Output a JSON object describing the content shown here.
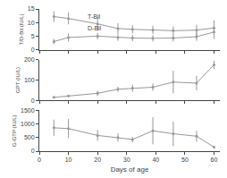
{
  "chart_data": [
    {
      "type": "line",
      "ylabel": "T/D-Bil (IU/L)",
      "x": [
        5,
        10,
        20,
        27,
        32,
        39,
        46,
        54,
        60
      ],
      "series": [
        {
          "color": "#999999",
          "marker": "circle",
          "line_style": "solid",
          "values": [
            12.2,
            11.5,
            9.5,
            7.8,
            7.5,
            7.3,
            7.0,
            7.2,
            8.0
          ],
          "errors": [
            2.0,
            2.2,
            2.5,
            2.0,
            1.5,
            1.5,
            1.5,
            2.0,
            2.8
          ]
        },
        {
          "color": "#999999",
          "marker": "circle",
          "line_style": "solid",
          "values": [
            3.0,
            4.5,
            5.0,
            4.5,
            4.3,
            4.2,
            4.3,
            4.8,
            6.5
          ],
          "errors": [
            1.0,
            1.5,
            1.2,
            1.2,
            1.2,
            1.2,
            1.3,
            1.5,
            2.5
          ]
        }
      ],
      "annotations": [
        {
          "text": "T-Bil",
          "x": 16,
          "y": 10.5
        },
        {
          "text": "D-Bil",
          "x": 16,
          "y": 6.0
        }
      ],
      "xlim": [
        0,
        62
      ],
      "xticks": [
        0,
        10,
        20,
        30,
        40,
        50,
        60
      ],
      "ylim": [
        0,
        15
      ],
      "yticks": [
        0,
        5,
        10,
        15
      ],
      "grid": false,
      "tick_labels": "y"
    },
    {
      "type": "line",
      "ylabel": "GPT (IU/L)",
      "x": [
        5,
        10,
        20,
        27,
        32,
        39,
        46,
        54,
        60
      ],
      "series": [
        {
          "color": "#999999",
          "marker": "circle",
          "line_style": "solid",
          "values": [
            15,
            22,
            35,
            55,
            60,
            65,
            90,
            85,
            175
          ],
          "errors": [
            5,
            5,
            12,
            12,
            18,
            18,
            55,
            35,
            20
          ]
        }
      ],
      "xlim": [
        0,
        62
      ],
      "xticks": [
        0,
        10,
        20,
        30,
        40,
        50,
        60
      ],
      "ylim": [
        0,
        200
      ],
      "yticks": [
        0,
        100,
        200
      ],
      "grid": false,
      "tick_labels": "y"
    },
    {
      "type": "line",
      "xlabel": "Days of age",
      "ylabel": "G-GTP (IU/L)",
      "x": [
        5,
        10,
        20,
        27,
        32,
        39,
        46,
        54,
        60
      ],
      "series": [
        {
          "color": "#999999",
          "marker": "circle",
          "line_style": "solid",
          "values": [
            860,
            830,
            580,
            500,
            430,
            750,
            640,
            550,
            150
          ],
          "errors": [
            300,
            350,
            200,
            150,
            100,
            500,
            450,
            200,
            50
          ]
        }
      ],
      "xlim": [
        0,
        62
      ],
      "xticks": [
        0,
        10,
        20,
        30,
        40,
        50,
        60
      ],
      "ylim": [
        0,
        1500
      ],
      "yticks": [
        0,
        500,
        1000,
        1500
      ],
      "grid": false
    }
  ]
}
